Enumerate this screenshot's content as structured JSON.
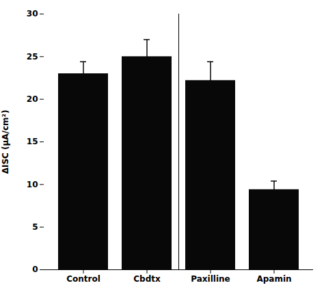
{
  "chart_data": {
    "type": "bar",
    "categories": [
      "Control",
      "Cbdtx",
      "Paxilline",
      "Apamin"
    ],
    "values": [
      23.0,
      25.0,
      22.2,
      9.4
    ],
    "errors": [
      1.4,
      2.0,
      2.2,
      1.0
    ],
    "color": "#080808",
    "ylabel": "ΔISC (μA/cm²)",
    "ylim": [
      0,
      30
    ],
    "yticks": [
      0,
      5,
      10,
      15,
      20,
      25,
      30
    ],
    "grid": false
  }
}
